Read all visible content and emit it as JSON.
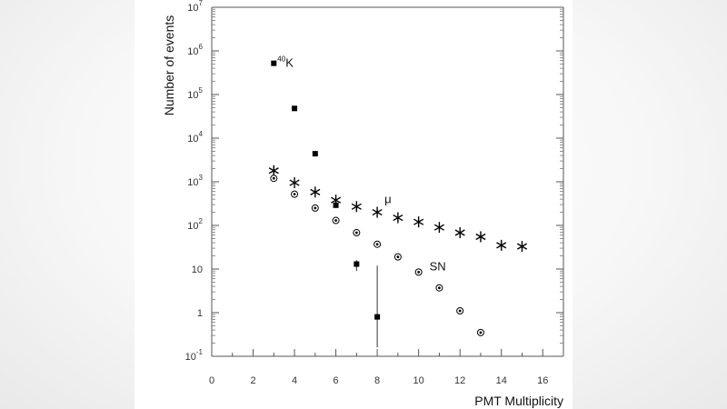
{
  "chart_data": {
    "type": "scatter",
    "title": "",
    "xlabel": "PMT Multiplicity",
    "ylabel": "Number of events",
    "xlim": [
      0,
      17
    ],
    "ylim": [
      0.1,
      10000000
    ],
    "yscale": "log",
    "grid": false,
    "x_ticks": [
      0,
      2,
      4,
      6,
      8,
      10,
      12,
      14,
      16
    ],
    "x_tick_labels": [
      "0",
      "2",
      "4",
      "6",
      "8",
      "10",
      "12",
      "14",
      "16"
    ],
    "y_ticks": [
      {
        "value": 0.1,
        "base": "10",
        "exp": "-1"
      },
      {
        "value": 1,
        "base": "1",
        "exp": ""
      },
      {
        "value": 10,
        "base": "10",
        "exp": ""
      },
      {
        "value": 100,
        "base": "10",
        "exp": "2"
      },
      {
        "value": 1000,
        "base": "10",
        "exp": "3"
      },
      {
        "value": 10000,
        "base": "10",
        "exp": "4"
      },
      {
        "value": 100000,
        "base": "10",
        "exp": "5"
      },
      {
        "value": 1000000,
        "base": "10",
        "exp": "6"
      },
      {
        "value": 10000000,
        "base": "10",
        "exp": "7"
      }
    ],
    "series": [
      {
        "name": "40K",
        "marker": "square",
        "x": [
          3,
          4,
          5,
          6,
          7,
          8
        ],
        "y": [
          520000,
          48000,
          4400,
          290,
          13,
          0.8
        ],
        "error_low": [
          null,
          null,
          null,
          null,
          9,
          0.16
        ],
        "error_high": [
          null,
          null,
          null,
          null,
          16,
          12
        ]
      },
      {
        "name": "mu",
        "marker": "asterisk",
        "x": [
          3,
          4,
          5,
          6,
          7,
          8,
          9,
          10,
          11,
          12,
          13,
          14,
          15
        ],
        "y": [
          1800,
          950,
          580,
          380,
          270,
          200,
          150,
          120,
          90,
          68,
          55,
          35,
          33
        ]
      },
      {
        "name": "SN",
        "marker": "circle-dot",
        "x": [
          3,
          4,
          5,
          6,
          7,
          8,
          9,
          10,
          11,
          12,
          13
        ],
        "y": [
          1200,
          520,
          250,
          130,
          68,
          37,
          19,
          8.5,
          3.7,
          1.1,
          0.35
        ]
      }
    ],
    "annotations": [
      {
        "text": "K",
        "superscript": "40",
        "series": "40K"
      },
      {
        "text": "μ",
        "series": "mu"
      },
      {
        "text": "SN",
        "series": "SN"
      }
    ]
  }
}
